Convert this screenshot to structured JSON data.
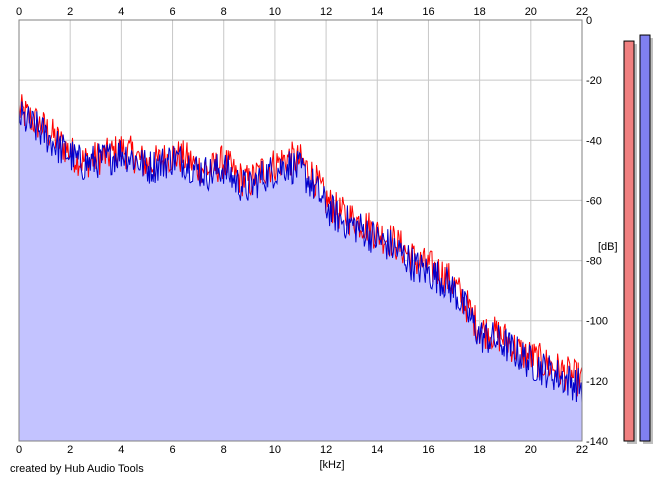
{
  "credit_text": "created by Hub Audio Tools",
  "colors": {
    "fill": "#c3c3ff",
    "left_line": "#ff0000",
    "right_line": "#0000cc",
    "grid": "#c8c8c8",
    "meter_left": "#f08080",
    "meter_right": "#8080f0"
  },
  "chart_data": {
    "type": "area",
    "xlabel": "[kHz]",
    "ylabel": "[dB]",
    "xlim": [
      0,
      22
    ],
    "ylim": [
      -140,
      0
    ],
    "x_ticks": [
      "0",
      "2",
      "4",
      "6",
      "8",
      "10",
      "12",
      "14",
      "16",
      "18",
      "20",
      "22"
    ],
    "y_ticks": [
      "0",
      "-20",
      "-40",
      "-60",
      "-80",
      "-100",
      "-120",
      "-140"
    ],
    "grid": true,
    "x": [
      0,
      0.5,
      1,
      1.5,
      2,
      2.5,
      3,
      3.5,
      4,
      4.5,
      5,
      5.5,
      6,
      6.5,
      7,
      7.5,
      8,
      8.5,
      9,
      9.5,
      10,
      10.5,
      11,
      11.5,
      12,
      12.5,
      13,
      13.5,
      14,
      14.5,
      15,
      15.5,
      16,
      16.5,
      17,
      17.5,
      18,
      18.5,
      19,
      19.5,
      20,
      20.5,
      21,
      21.5,
      22
    ],
    "series": [
      {
        "values": [
          -30,
          -33,
          -36,
          -40,
          -44,
          -47,
          -46,
          -45,
          -43,
          -45,
          -48,
          -47,
          -45,
          -46,
          -49,
          -50,
          -47,
          -52,
          -54,
          -50,
          -48,
          -46,
          -47,
          -52,
          -60,
          -64,
          -66,
          -68,
          -71,
          -73,
          -76,
          -80,
          -82,
          -84,
          -88,
          -95,
          -103,
          -104,
          -106,
          -110,
          -112,
          -114,
          -116,
          -118,
          -120
        ]
      },
      {
        "values": [
          -32,
          -35,
          -38,
          -42,
          -45,
          -48,
          -47,
          -46,
          -44,
          -46,
          -49,
          -48,
          -46,
          -47,
          -50,
          -51,
          -49,
          -54,
          -56,
          -52,
          -50,
          -48,
          -50,
          -55,
          -62,
          -66,
          -68,
          -70,
          -73,
          -75,
          -78,
          -82,
          -84,
          -86,
          -90,
          -97,
          -105,
          -106,
          -108,
          -111,
          -114,
          -116,
          -118,
          -120,
          -122
        ]
      }
    ],
    "meters": [
      {
        "value": -7
      },
      {
        "value": -5
      }
    ]
  }
}
